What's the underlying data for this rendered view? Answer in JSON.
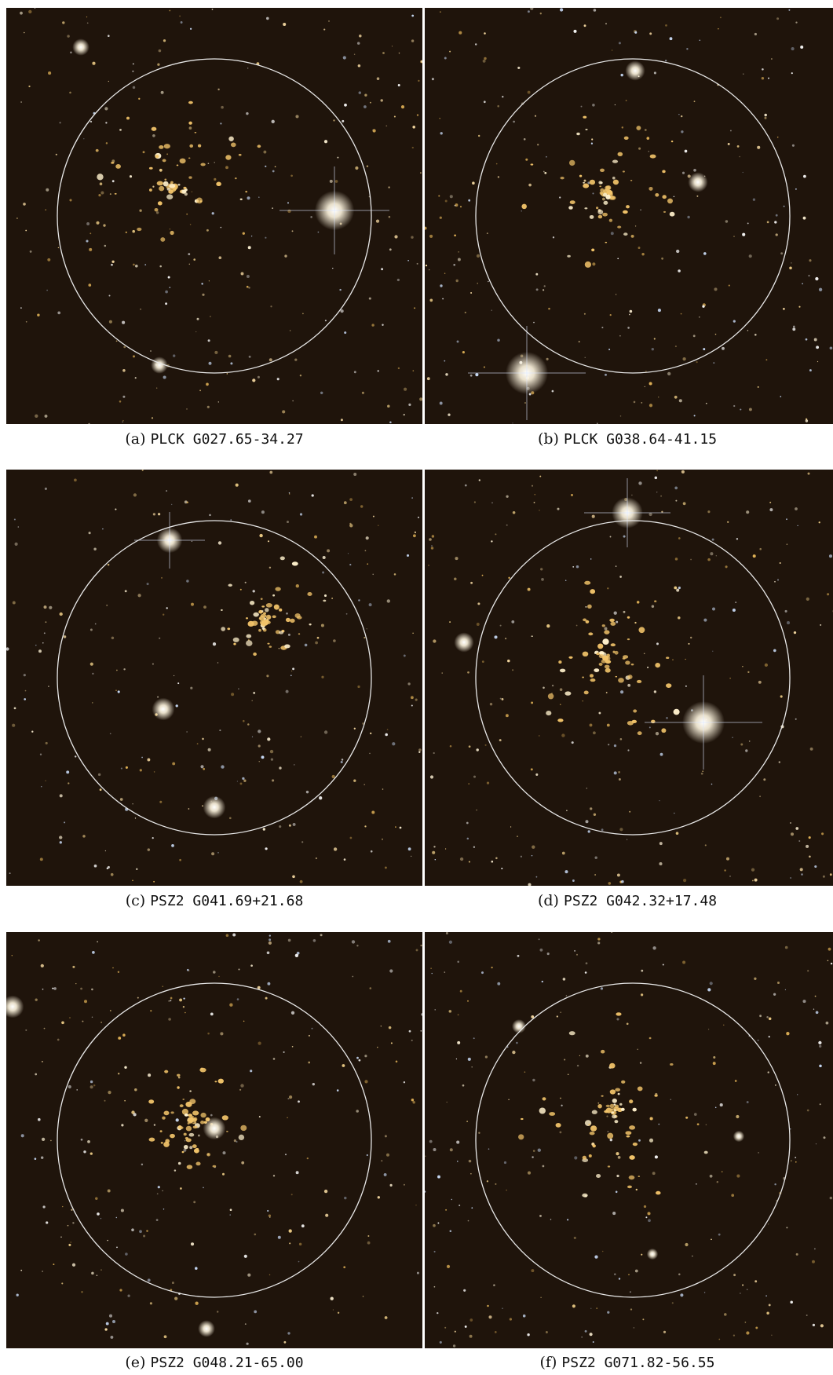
{
  "figure": {
    "background_color": "#ffffff",
    "sky_color": "#1f140b",
    "aperture_circle_color": "#e8e8e8",
    "panels": [
      {
        "tag": "(a)",
        "name": "PLCK G027.65-34.27"
      },
      {
        "tag": "(b)",
        "name": "PLCK G038.64-41.15"
      },
      {
        "tag": "(c)",
        "name": "PSZ2 G041.69+21.68"
      },
      {
        "tag": "(d)",
        "name": "PSZ2 G042.32+17.48"
      },
      {
        "tag": "(e)",
        "name": "PSZ2 G048.21-65.00"
      },
      {
        "tag": "(f)",
        "name": "PSZ2 G071.82-56.55"
      }
    ]
  }
}
